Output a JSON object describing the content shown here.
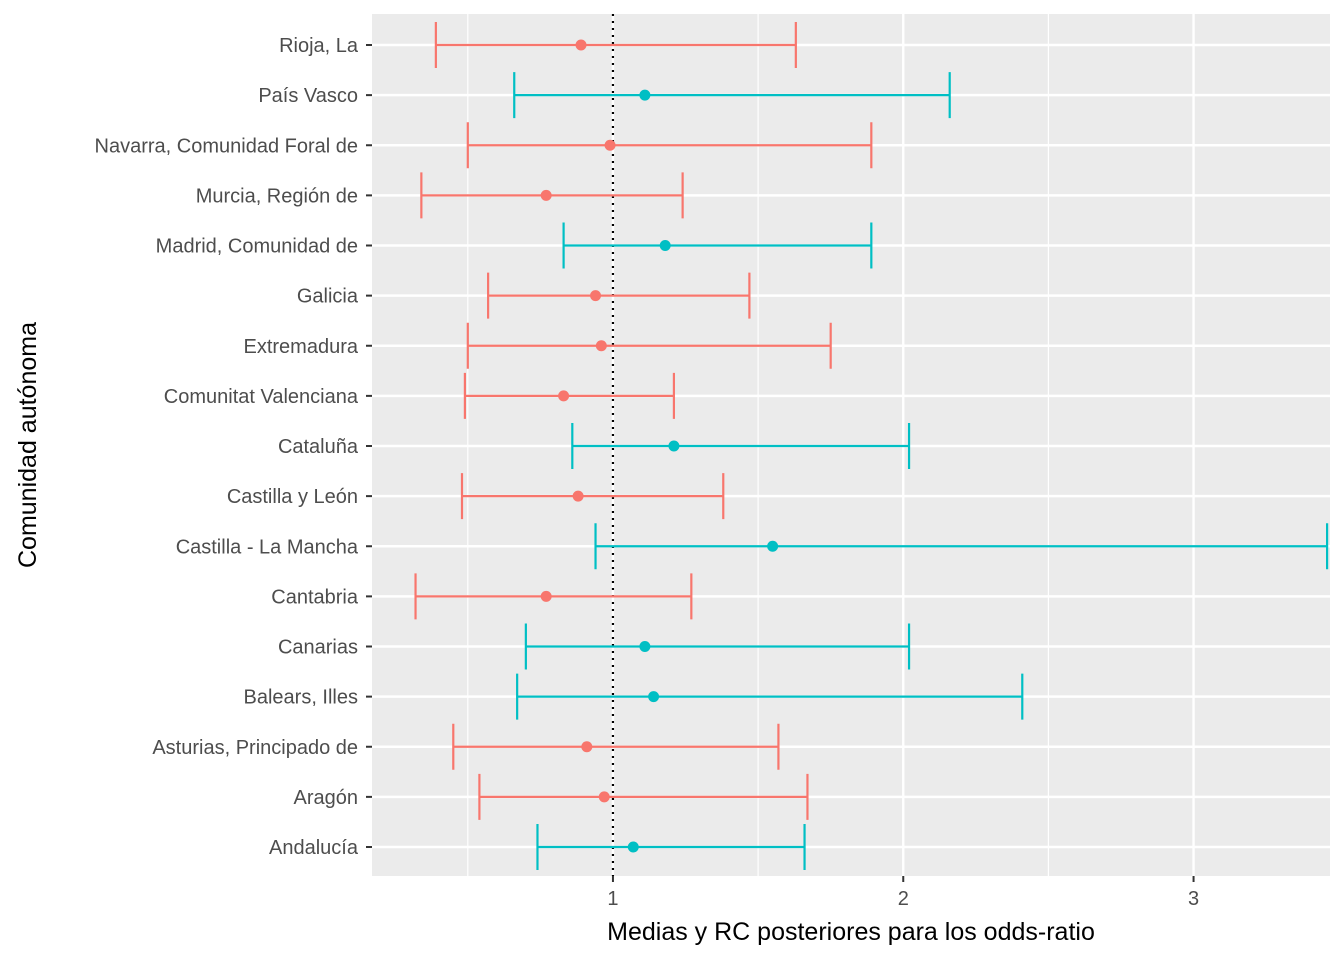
{
  "chart_data": {
    "type": "scatter",
    "variant": "point-with-horizontal-errorbars",
    "title": "",
    "xlabel": "Medias y RC posteriores para los odds-ratio",
    "ylabel": "Comunidad autónoma",
    "xlim": [
      0.17,
      3.47
    ],
    "x_ticks": [
      1,
      2,
      3
    ],
    "x_tick_labels": [
      "1",
      "2",
      "3"
    ],
    "reference_line": {
      "x": 1,
      "style": "dotted",
      "color": "#000000"
    },
    "grid": true,
    "legend": "none",
    "colors": {
      "below": "#F8766D",
      "above": "#00BFC4",
      "panel": "#EBEBEB",
      "grid": "#FFFFFF"
    },
    "categories": [
      "Andalucía",
      "Aragón",
      "Asturias, Principado de",
      "Balears, Illes",
      "Canarias",
      "Cantabria",
      "Castilla - La Mancha",
      "Castilla y León",
      "Cataluña",
      "Comunitat Valenciana",
      "Extremadura",
      "Galicia",
      "Madrid, Comunidad de",
      "Murcia, Región de",
      "Navarra, Comunidad Foral de",
      "País Vasco",
      "Rioja, La"
    ],
    "points": [
      {
        "label": "Andalucía",
        "mean": 1.07,
        "lower": 0.74,
        "upper": 1.66,
        "group": "above"
      },
      {
        "label": "Aragón",
        "mean": 0.97,
        "lower": 0.54,
        "upper": 1.67,
        "group": "below"
      },
      {
        "label": "Asturias, Principado de",
        "mean": 0.91,
        "lower": 0.45,
        "upper": 1.57,
        "group": "below"
      },
      {
        "label": "Balears, Illes",
        "mean": 1.14,
        "lower": 0.67,
        "upper": 2.41,
        "group": "above"
      },
      {
        "label": "Canarias",
        "mean": 1.11,
        "lower": 0.7,
        "upper": 2.02,
        "group": "above"
      },
      {
        "label": "Cantabria",
        "mean": 0.77,
        "lower": 0.32,
        "upper": 1.27,
        "group": "below"
      },
      {
        "label": "Castilla - La Mancha",
        "mean": 1.55,
        "lower": 0.94,
        "upper": 3.46,
        "group": "above"
      },
      {
        "label": "Castilla y León",
        "mean": 0.88,
        "lower": 0.48,
        "upper": 1.38,
        "group": "below"
      },
      {
        "label": "Cataluña",
        "mean": 1.21,
        "lower": 0.86,
        "upper": 2.02,
        "group": "above"
      },
      {
        "label": "Comunitat Valenciana",
        "mean": 0.83,
        "lower": 0.49,
        "upper": 1.21,
        "group": "below"
      },
      {
        "label": "Extremadura",
        "mean": 0.96,
        "lower": 0.5,
        "upper": 1.75,
        "group": "below"
      },
      {
        "label": "Galicia",
        "mean": 0.94,
        "lower": 0.57,
        "upper": 1.47,
        "group": "below"
      },
      {
        "label": "Madrid, Comunidad de",
        "mean": 1.18,
        "lower": 0.83,
        "upper": 1.89,
        "group": "above"
      },
      {
        "label": "Murcia, Región de",
        "mean": 0.77,
        "lower": 0.34,
        "upper": 1.24,
        "group": "below"
      },
      {
        "label": "Navarra, Comunidad Foral de",
        "mean": 0.99,
        "lower": 0.5,
        "upper": 1.89,
        "group": "below"
      },
      {
        "label": "País Vasco",
        "mean": 1.11,
        "lower": 0.66,
        "upper": 2.16,
        "group": "above"
      },
      {
        "label": "Rioja, La",
        "mean": 0.89,
        "lower": 0.39,
        "upper": 1.63,
        "group": "below"
      }
    ]
  }
}
